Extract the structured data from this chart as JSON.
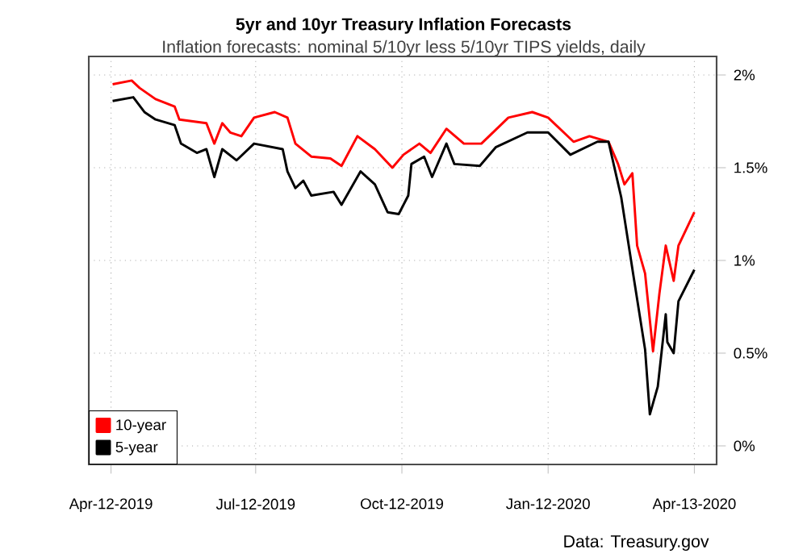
{
  "chart_data": {
    "type": "line",
    "title": "5yr and 10yr Treasury Inflation Forecasts",
    "subtitle": "Inflation forecasts: nominal 5/10yr less 5/10yr TIPS yields, daily",
    "annotations": [
      "Data: Treasury.gov"
    ],
    "xlim": [
      "2019-03-29",
      "2020-04-27"
    ],
    "xticks": [
      {
        "value": "2019-04-12",
        "label": "Apr-12-2019"
      },
      {
        "value": "2019-07-12",
        "label": "Jul-12-2019"
      },
      {
        "value": "2019-10-12",
        "label": "Oct-12-2019"
      },
      {
        "value": "2020-01-12",
        "label": "Jan-12-2020"
      },
      {
        "value": "2020-04-13",
        "label": "Apr-13-2020"
      }
    ],
    "ylim": [
      -0.1,
      2.1
    ],
    "yticks": [
      {
        "value": 0,
        "label": "0%"
      },
      {
        "value": 0.5,
        "label": "0.5%"
      },
      {
        "value": 1,
        "label": "1%"
      },
      {
        "value": 1.5,
        "label": "1.5%"
      },
      {
        "value": 2,
        "label": "2%"
      }
    ],
    "grid": true,
    "legend": "bottom left",
    "line_style": "solid",
    "marker": "none",
    "series": [
      {
        "name": "10-year",
        "color": "#ff0000",
        "x": [
          "2019-04-13",
          "2019-04-25",
          "2019-04-30",
          "2019-05-10",
          "2019-05-22",
          "2019-05-25",
          "2019-06-11",
          "2019-06-16",
          "2019-06-21",
          "2019-06-26",
          "2019-07-03",
          "2019-07-11",
          "2019-07-24",
          "2019-08-01",
          "2019-08-06",
          "2019-08-16",
          "2019-08-28",
          "2019-09-04",
          "2019-09-14",
          "2019-09-25",
          "2019-10-06",
          "2019-10-13",
          "2019-10-23",
          "2019-10-30",
          "2019-11-09",
          "2019-11-20",
          "2019-12-01",
          "2019-12-18",
          "2020-01-02",
          "2020-01-12",
          "2020-01-28",
          "2020-02-07",
          "2020-02-19",
          "2020-02-25",
          "2020-02-29",
          "2020-03-05",
          "2020-03-08",
          "2020-03-13",
          "2020-03-18",
          "2020-03-22",
          "2020-03-26",
          "2020-03-31",
          "2020-04-03",
          "2020-04-13"
        ],
        "values": [
          1.95,
          1.97,
          1.93,
          1.87,
          1.83,
          1.76,
          1.74,
          1.63,
          1.74,
          1.69,
          1.67,
          1.77,
          1.8,
          1.77,
          1.63,
          1.56,
          1.55,
          1.51,
          1.67,
          1.6,
          1.5,
          1.57,
          1.63,
          1.58,
          1.71,
          1.63,
          1.63,
          1.77,
          1.8,
          1.77,
          1.64,
          1.67,
          1.64,
          1.52,
          1.41,
          1.47,
          1.08,
          0.93,
          0.51,
          0.82,
          1.08,
          0.89,
          1.08,
          1.26
        ]
      },
      {
        "name": "5-year",
        "color": "#000000",
        "x": [
          "2019-04-13",
          "2019-04-26",
          "2019-05-03",
          "2019-05-10",
          "2019-05-22",
          "2019-05-26",
          "2019-06-05",
          "2019-06-11",
          "2019-06-16",
          "2019-06-21",
          "2019-06-30",
          "2019-07-11",
          "2019-07-29",
          "2019-08-01",
          "2019-08-06",
          "2019-08-11",
          "2019-08-16",
          "2019-08-30",
          "2019-09-04",
          "2019-09-16",
          "2019-09-25",
          "2019-10-03",
          "2019-10-10",
          "2019-10-16",
          "2019-10-18",
          "2019-10-26",
          "2019-10-31",
          "2019-11-09",
          "2019-11-14",
          "2019-11-30",
          "2019-12-10",
          "2019-12-30",
          "2020-01-12",
          "2020-01-26",
          "2020-02-12",
          "2020-02-19",
          "2020-02-27",
          "2020-03-06",
          "2020-03-13",
          "2020-03-16",
          "2020-03-21",
          "2020-03-26",
          "2020-03-27",
          "2020-03-31",
          "2020-04-03",
          "2020-04-13"
        ],
        "values": [
          1.86,
          1.88,
          1.8,
          1.76,
          1.73,
          1.63,
          1.58,
          1.6,
          1.45,
          1.6,
          1.54,
          1.63,
          1.6,
          1.48,
          1.39,
          1.43,
          1.35,
          1.37,
          1.3,
          1.48,
          1.41,
          1.26,
          1.25,
          1.35,
          1.52,
          1.56,
          1.45,
          1.63,
          1.52,
          1.51,
          1.61,
          1.69,
          1.69,
          1.57,
          1.64,
          1.64,
          1.34,
          0.9,
          0.52,
          0.17,
          0.32,
          0.71,
          0.56,
          0.5,
          0.78,
          0.95
        ]
      }
    ]
  }
}
